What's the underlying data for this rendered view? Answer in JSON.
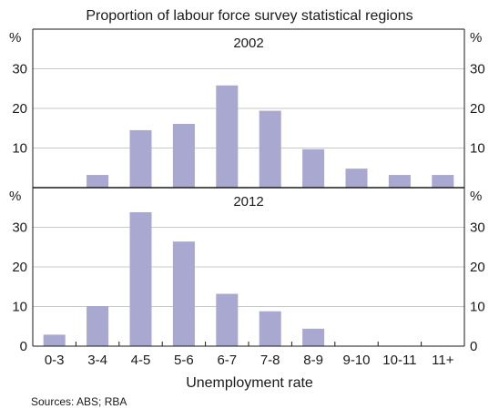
{
  "chart_data": {
    "type": "bar",
    "title": "",
    "subtitle": "Proportion of labour force survey statistical regions",
    "xlabel": "Unemployment rate",
    "ylabel_left": "%",
    "ylabel_right": "%",
    "source": "Sources: ABS; RBA",
    "categories": [
      "0-3",
      "3-4",
      "4-5",
      "5-6",
      "6-7",
      "7-8",
      "8-9",
      "9-10",
      "10-11",
      "11+"
    ],
    "bar_color": "#a8a8d0",
    "ylim": [
      0,
      40
    ],
    "yticks": [
      10,
      20,
      30
    ],
    "yticks_bottom": [
      0,
      10,
      20,
      30
    ],
    "grid": true,
    "panels": [
      {
        "name": "2002",
        "values": [
          0,
          3.2,
          14.5,
          16.1,
          25.8,
          19.4,
          9.7,
          4.8,
          3.2,
          3.2
        ]
      },
      {
        "name": "2012",
        "values": [
          2.9,
          10.1,
          33.8,
          26.4,
          13.2,
          8.8,
          4.4,
          0,
          0,
          0
        ]
      }
    ]
  }
}
